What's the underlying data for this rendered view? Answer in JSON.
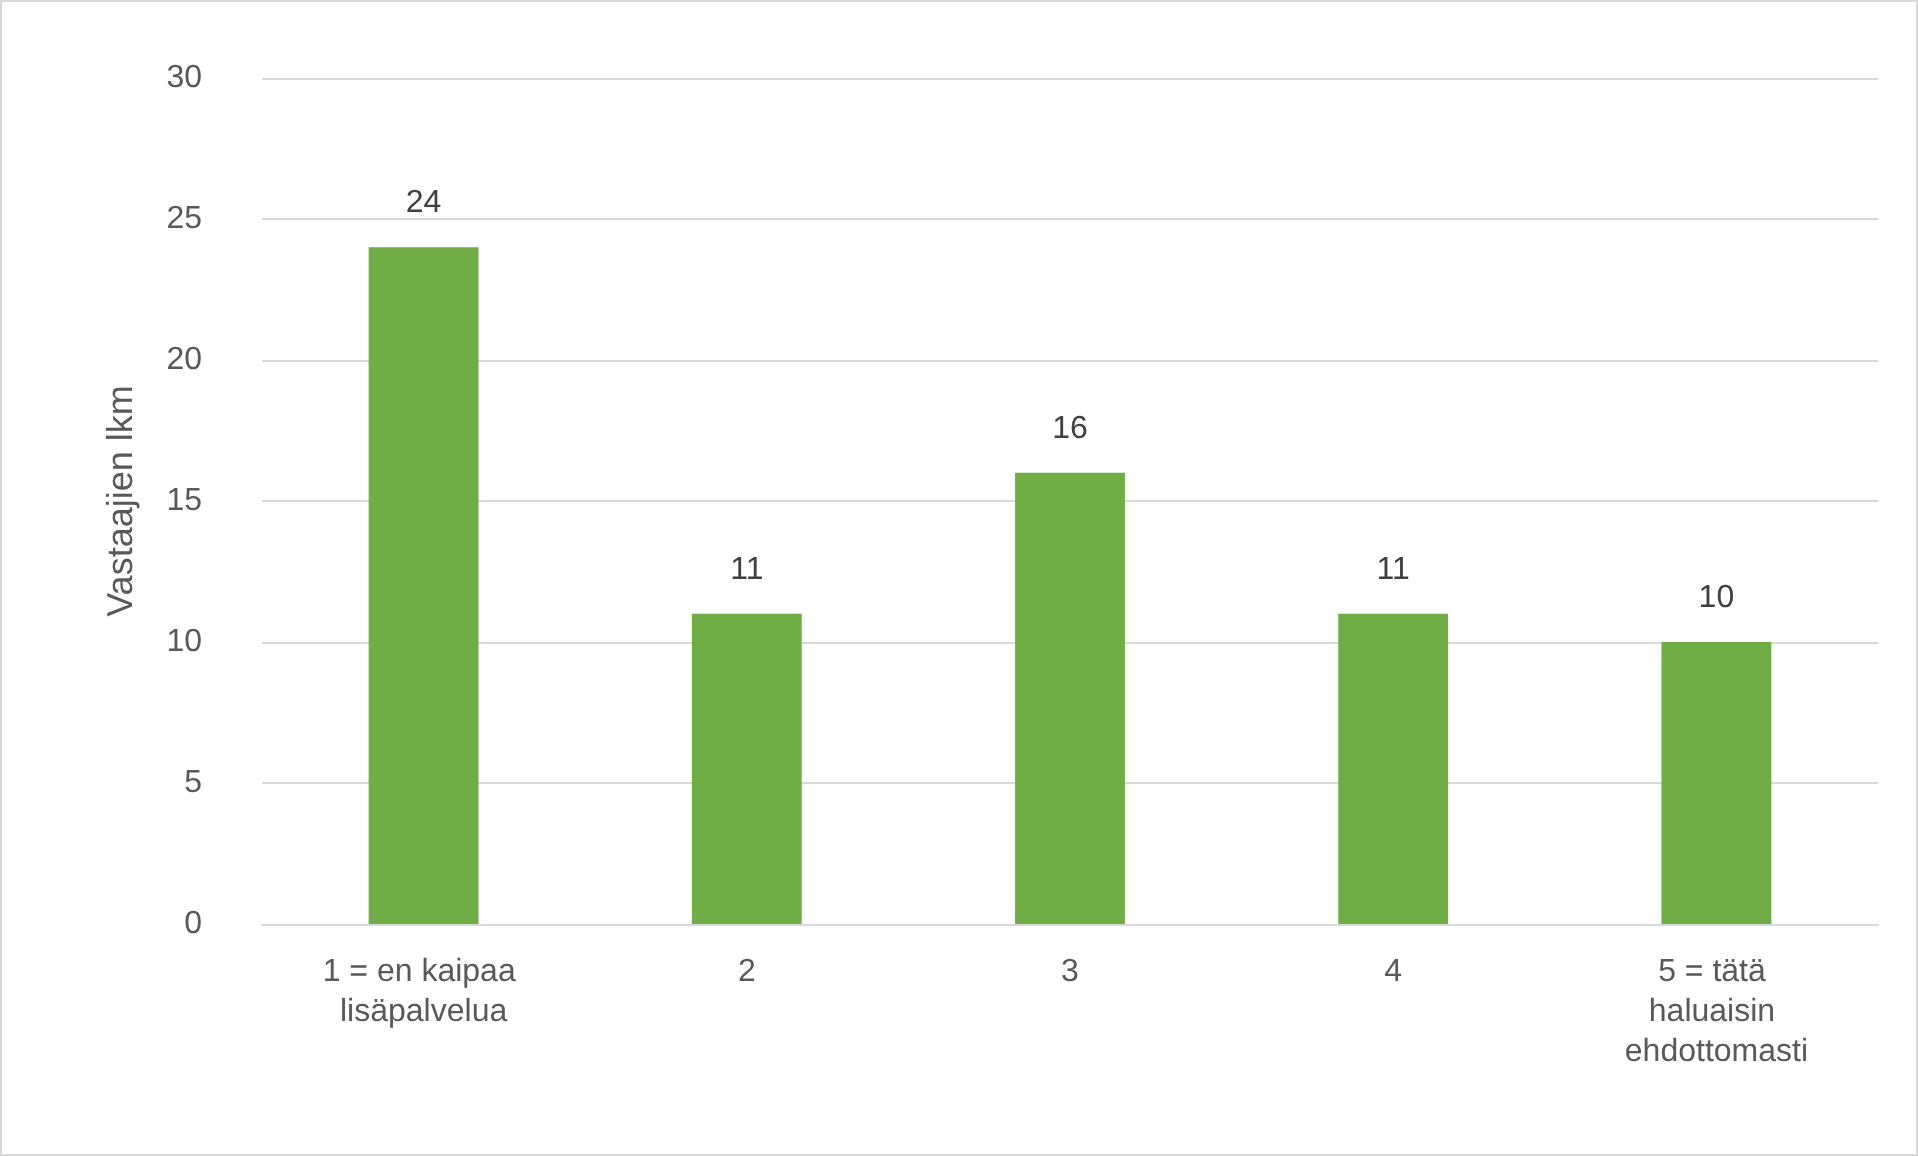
{
  "chart_data": {
    "type": "bar",
    "ylabel": "Vastaajien lkm",
    "categories": [
      "1 = en kaipaa lisäpalvelua",
      "2",
      "3",
      "4",
      "5 = tätä haluaisin ehdottomasti"
    ],
    "values": [
      24,
      11,
      16,
      11,
      10
    ],
    "color": "#70ad47",
    "ylim": [
      0,
      30
    ],
    "yticks": [
      0,
      5,
      10,
      15,
      20,
      25,
      30
    ],
    "grid": "y",
    "data_labels": true
  }
}
